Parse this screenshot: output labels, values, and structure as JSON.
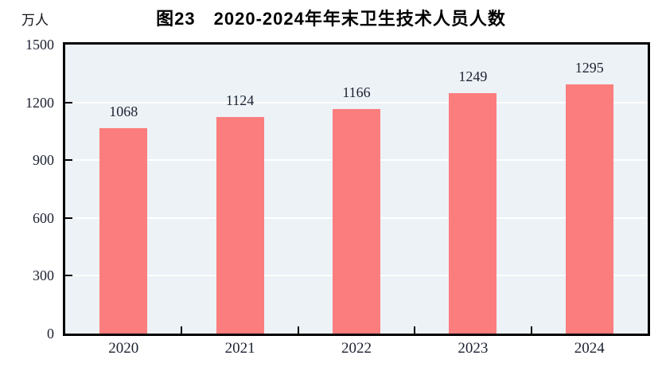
{
  "chart_data": {
    "type": "bar",
    "title": "图23　2020-2024年年末卫生技术人员人数",
    "unit_label": "万人",
    "categories": [
      "2020",
      "2021",
      "2022",
      "2023",
      "2024"
    ],
    "values": [
      1068,
      1124,
      1166,
      1249,
      1295
    ],
    "ylim": [
      0,
      1500
    ],
    "yticks": [
      0,
      300,
      600,
      900,
      1200,
      1500
    ],
    "grid": true,
    "legend": "none",
    "colors": {
      "bar_fill": "#fc7d7d",
      "plot_background": "#ecf2f6",
      "gridline": "#ffffff",
      "axis_border": "#000000",
      "label_text": "#1c2130",
      "title_text": "#000000",
      "page_background": "#ffffff"
    }
  }
}
